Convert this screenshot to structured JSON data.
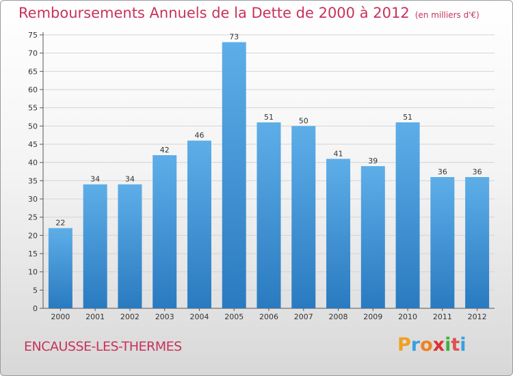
{
  "title": "Remboursements Annuels de la Dette de 2000 à 2012",
  "subtitle": "(en milliers d'€)",
  "commune": "ENCAUSSE-LES-THERMES",
  "logo": {
    "text": "Proxiti",
    "colors": [
      "#f0a020",
      "#3aa0e0",
      "#f08020",
      "#e03030",
      "#40b040",
      "#e05050",
      "#3aa0e0"
    ]
  },
  "colors": {
    "title": "#c8325a",
    "bar_top": "#5daee8",
    "bar_bottom": "#2a7ac0"
  },
  "chart_data": {
    "type": "bar",
    "categories": [
      "2000",
      "2001",
      "2002",
      "2003",
      "2004",
      "2005",
      "2006",
      "2007",
      "2008",
      "2009",
      "2010",
      "2011",
      "2012"
    ],
    "values": [
      22,
      34,
      34,
      42,
      46,
      73,
      51,
      50,
      41,
      39,
      51,
      36,
      36
    ],
    "ylim": [
      0,
      75
    ],
    "yticks": [
      0,
      5,
      10,
      15,
      20,
      25,
      30,
      35,
      40,
      45,
      50,
      55,
      60,
      65,
      70,
      75
    ],
    "grid": true,
    "data_labels": true
  }
}
